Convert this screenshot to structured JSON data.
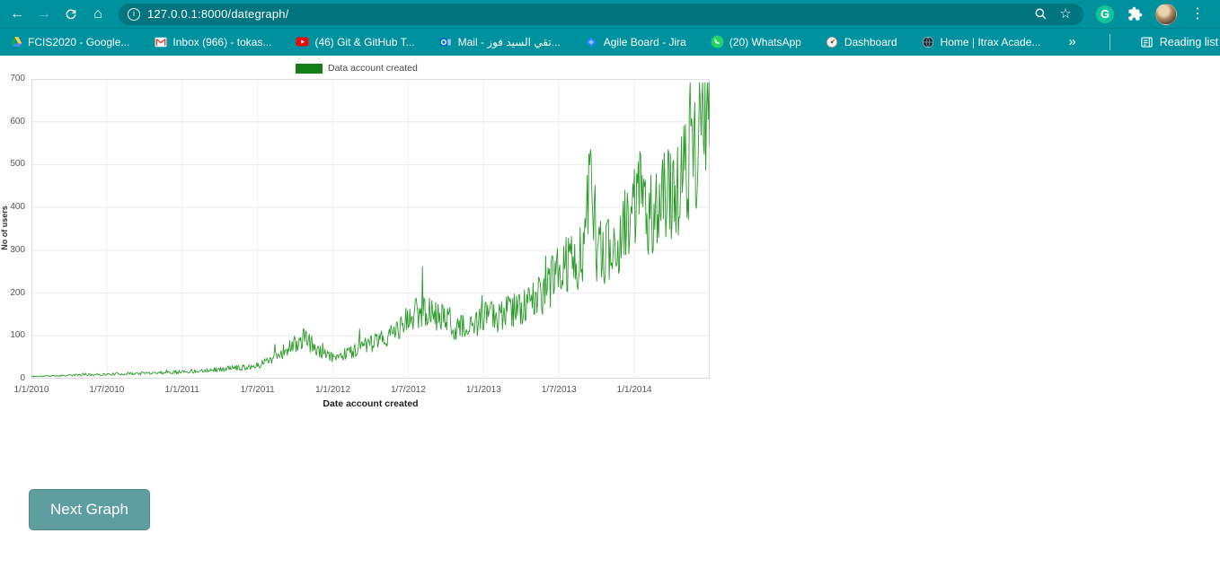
{
  "theme": {
    "toolbar-bg": "#00919F",
    "omnibox-bg": "#00747F",
    "button-bg": "#5F9EA0",
    "button-border": "#4E8A8D"
  },
  "browser": {
    "url": "127.0.0.1:8000/dategraph/",
    "toolbar": {
      "back_glyph": "←",
      "forward_glyph": "→",
      "home_glyph": "⌂",
      "menu_glyph": "⋮",
      "star_glyph": "☆",
      "info_glyph": "i",
      "grammarly_glyph": "G"
    },
    "bookmarks": [
      {
        "label": "FCIS2020 - Google...",
        "icon": "google-drive"
      },
      {
        "label": "Inbox (966) - tokas...",
        "icon": "gmail"
      },
      {
        "label": "(46) Git & GitHub T...",
        "icon": "youtube"
      },
      {
        "label": "Mail - تقي السيد فوز...",
        "icon": "outlook"
      },
      {
        "label": "Agile Board - Jira",
        "icon": "jira"
      },
      {
        "label": "(20) WhatsApp",
        "icon": "whatsapp"
      },
      {
        "label": "Dashboard",
        "icon": "dashboard-gauge"
      },
      {
        "label": "Home | Itrax Acade...",
        "icon": "globe"
      }
    ],
    "bookmarks_overflow_glyph": "»",
    "reading_list_label": "Reading list"
  },
  "chart_data": {
    "type": "line",
    "title": "",
    "xlabel": "Date account created",
    "ylabel": "No of users",
    "legend": {
      "label": "Data account created",
      "swatch_color": "#157f17",
      "position": "top"
    },
    "series_color": "#2C9B2C",
    "grid": true,
    "ylim": [
      0,
      700
    ],
    "yticks": [
      0,
      100,
      200,
      300,
      400,
      500,
      600,
      700
    ],
    "x_axis": {
      "unit": "months_since_2010_01",
      "range": [
        0,
        54
      ],
      "ticks": [
        {
          "pos": 0,
          "label": "1/1/2010"
        },
        {
          "pos": 6,
          "label": "1/7/2010"
        },
        {
          "pos": 12,
          "label": "1/1/2011"
        },
        {
          "pos": 18,
          "label": "1/7/2011"
        },
        {
          "pos": 24,
          "label": "1/1/2012"
        },
        {
          "pos": 30,
          "label": "1/7/2012"
        },
        {
          "pos": 36,
          "label": "1/1/2013"
        },
        {
          "pos": 42,
          "label": "1/7/2013"
        },
        {
          "pos": 48,
          "label": "1/1/2014"
        }
      ]
    },
    "trend_points": {
      "comment": "approximate daily-signups trend read from the plot; noisy daily series oscillates around these values",
      "months": [
        0,
        3,
        6,
        9,
        12,
        15,
        18,
        19.5,
        21,
        21.8,
        23,
        24,
        26,
        28,
        29,
        30,
        31,
        32,
        33,
        34,
        35,
        36,
        38,
        40,
        42,
        43,
        44,
        44.6,
        45,
        46,
        47,
        48,
        48.6,
        49,
        50,
        51,
        52,
        53,
        53.5,
        54
      ],
      "values": [
        5,
        8,
        10,
        13,
        16,
        22,
        30,
        55,
        80,
        95,
        60,
        48,
        70,
        90,
        110,
        135,
        165,
        150,
        140,
        120,
        115,
        140,
        155,
        180,
        250,
        270,
        290,
        520,
        285,
        305,
        335,
        390,
        505,
        385,
        405,
        435,
        475,
        545,
        645,
        605
      ]
    },
    "noise": {
      "amplitude": 0.27,
      "seed": 11,
      "step_months": 0.0625
    }
  },
  "page": {
    "next_button_label": "Next Graph"
  }
}
